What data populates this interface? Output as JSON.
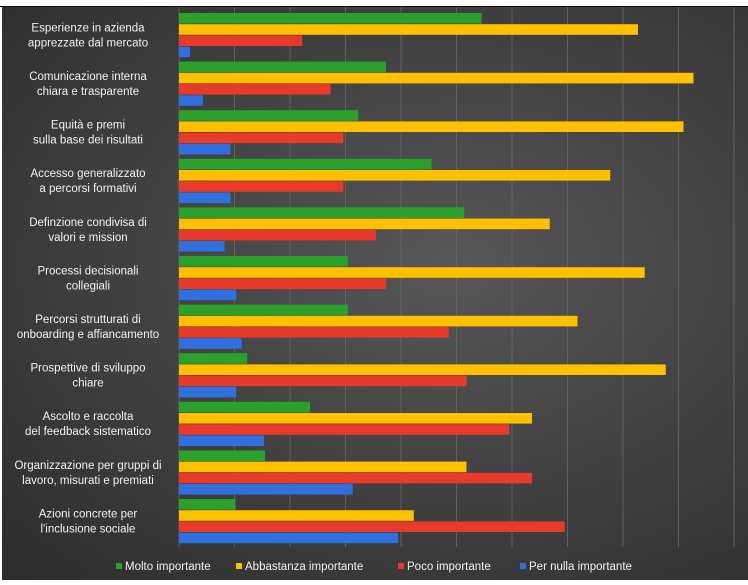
{
  "chart_data": {
    "type": "bar",
    "orientation": "horizontal",
    "title": "",
    "xlabel": "",
    "ylabel": "",
    "xlim": [
      0,
      100
    ],
    "grid": true,
    "legend_position": "bottom",
    "categories": [
      "Esperienze in azienda\napprezzate dal mercato",
      "Comunicazione interna\nchiara e trasparente",
      "Equità e premi\nsulla base dei risultati",
      "Accesso generalizzato\na percorsi formativi",
      "Definzione condivisa di\nvalori e mission",
      "Processi decisionali\ncollegiali",
      "Percorsi strutturati di\nonboarding e affiancamento",
      "Prospettive di sviluppo\nchiare",
      "Ascolto e raccolta\ndel feedback sistematico",
      "Organizzazione per gruppi di\nlavoro, misurati e premiati",
      "Azioni concrete per\nl'inclusione sociale"
    ],
    "series": [
      {
        "name": "Molto importante",
        "color": "#2ca02c",
        "values": [
          54.5,
          37.3,
          32.3,
          45.5,
          51.4,
          30.4,
          30.4,
          12.3,
          23.6,
          15.5,
          10.2
        ]
      },
      {
        "name": "Abbastanza importante",
        "color": "#ffc000",
        "values": [
          82.7,
          92.7,
          90.9,
          77.7,
          66.8,
          83.9,
          71.8,
          87.7,
          63.6,
          51.8,
          42.3
        ]
      },
      {
        "name": "Poco importante",
        "color": "#e83a2b",
        "values": [
          22.2,
          27.3,
          29.6,
          29.6,
          35.5,
          37.3,
          48.6,
          51.8,
          59.5,
          63.6,
          69.5
        ]
      },
      {
        "name": "Per nulla importante",
        "color": "#2f6fde",
        "values": [
          2.0,
          4.3,
          9.3,
          9.3,
          8.2,
          10.3,
          11.3,
          10.3,
          15.3,
          31.3,
          39.5
        ]
      }
    ]
  }
}
